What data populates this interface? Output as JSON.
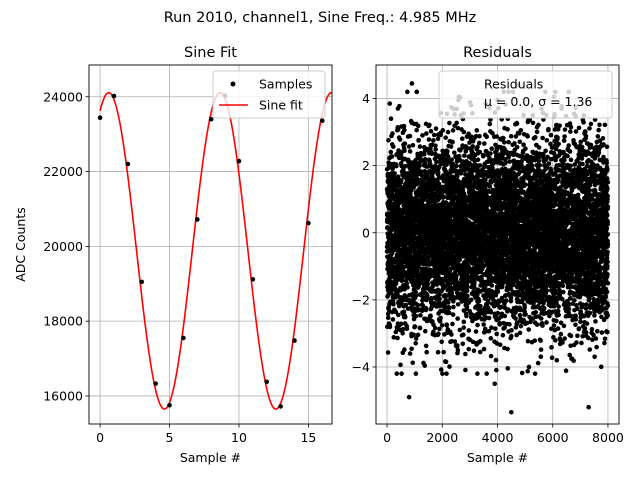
{
  "figure": {
    "suptitle": "Run 2010, channel1, Sine Freq.: 4.985 MHz"
  },
  "chart_data": [
    {
      "type": "scatter",
      "panel": "sine-fit",
      "title": "Sine Fit",
      "xlabel": "Sample #",
      "ylabel": "ADC Counts",
      "xlim": [
        -0.8,
        16.7
      ],
      "ylim": [
        15250,
        24850
      ],
      "xticks": [
        0,
        5,
        10,
        15
      ],
      "yticks": [
        16000,
        18000,
        20000,
        22000,
        24000
      ],
      "grid": true,
      "legend": {
        "position": "top-right",
        "entries": [
          "Samples",
          "Sine fit"
        ]
      },
      "series": [
        {
          "name": "Samples",
          "style": "points",
          "color": "#000000",
          "x": [
            0,
            1,
            2,
            3,
            4,
            5,
            6,
            7,
            8,
            9,
            10,
            11,
            12,
            13,
            14,
            15,
            16
          ],
          "y": [
            23440,
            24020,
            22200,
            19050,
            16330,
            15750,
            17550,
            20720,
            23400,
            24030,
            22280,
            19120,
            16380,
            15720,
            17480,
            20620,
            23360
          ]
        },
        {
          "name": "Sine fit",
          "style": "line",
          "color": "#ff0000",
          "model": {
            "center": 19880,
            "amplitude": 4230,
            "period": 8.023,
            "phase_x": 0.62
          },
          "x_range": [
            0,
            16.7
          ]
        }
      ]
    },
    {
      "type": "scatter",
      "panel": "residuals",
      "title": "Residuals",
      "xlabel": "Sample #",
      "ylabel": "",
      "xlim": [
        -400,
        8400
      ],
      "ylim": [
        -5.7,
        5.0
      ],
      "xticks": [
        0,
        2000,
        4000,
        6000,
        8000
      ],
      "yticks": [
        -4,
        -2,
        0,
        2,
        4
      ],
      "grid": true,
      "legend": {
        "position": "top-right",
        "entries": [
          "Residuals",
          "μ = 0.0, σ = 1.36"
        ]
      },
      "series": [
        {
          "name": "Residuals",
          "style": "points",
          "color": "#000000",
          "n_points": 8000,
          "mean": 0.0,
          "std": 1.36,
          "outliers": [
            {
              "x": 4500,
              "y": -5.35
            },
            {
              "x": 7300,
              "y": -5.2
            },
            {
              "x": 800,
              "y": -4.9
            },
            {
              "x": 3900,
              "y": -4.5
            },
            {
              "x": 900,
              "y": 4.45
            },
            {
              "x": 4750,
              "y": 4.4
            },
            {
              "x": 2600,
              "y": 4.05
            },
            {
              "x": 100,
              "y": 3.85
            },
            {
              "x": 4000,
              "y": 3.95
            }
          ]
        }
      ]
    }
  ]
}
